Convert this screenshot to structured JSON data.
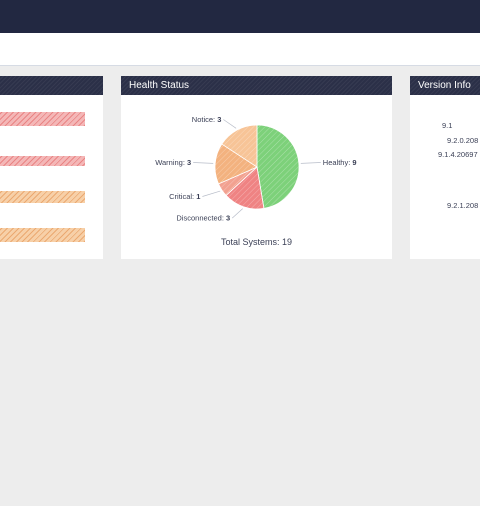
{
  "health_panel": {
    "title": "Health Status",
    "total_label": "Total Systems: 19"
  },
  "version_panel": {
    "title": "Version Info",
    "versions": [
      "9.1",
      "9.2.0.208",
      "9.1.4.20697",
      "9.2.1.208"
    ]
  },
  "left_panel": {
    "bars": [
      {
        "color": "red",
        "value_fraction": 1.0
      },
      {
        "color": "red",
        "value_fraction": 1.0
      },
      {
        "color": "orange",
        "value_fraction": 1.0
      },
      {
        "color": "orange",
        "value_fraction": 1.0
      }
    ]
  },
  "colors": {
    "healthy": "#7dd17a",
    "disconnected": "#ef8383",
    "critical": "#f2a190",
    "warning": "#f3b27f",
    "notice": "#f7c497",
    "header_bg": "#2b3048",
    "topbar_bg": "#222841"
  },
  "chart_data": {
    "type": "pie",
    "slices": [
      {
        "label": "Healthy",
        "value": 9,
        "color": "#7dd17a"
      },
      {
        "label": "Disconnected",
        "value": 3,
        "color": "#ef8383"
      },
      {
        "label": "Critical",
        "value": 1,
        "color": "#f2a190"
      },
      {
        "label": "Warning",
        "value": 3,
        "color": "#f3b27f"
      },
      {
        "label": "Notice",
        "value": 3,
        "color": "#f7c497"
      }
    ]
  }
}
